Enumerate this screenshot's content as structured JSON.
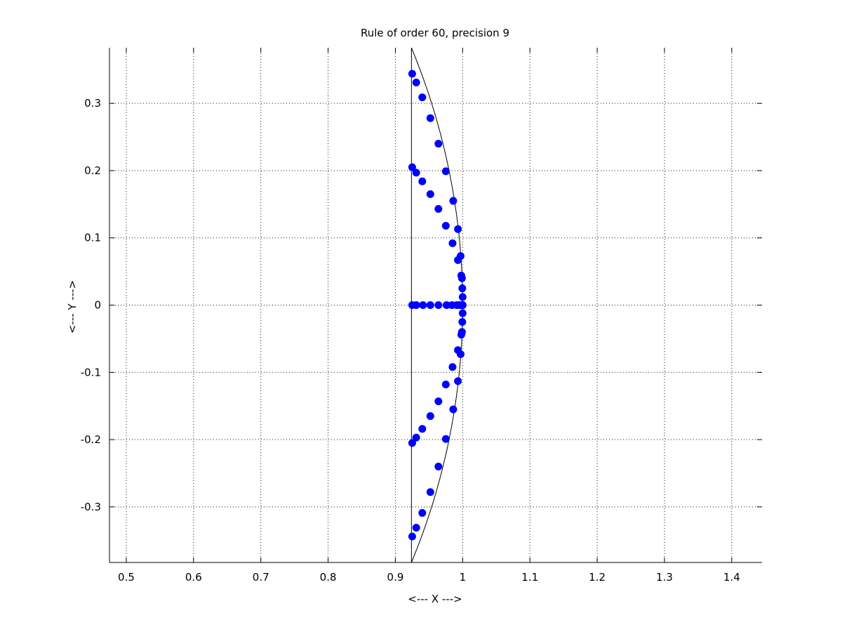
{
  "chart_data": {
    "type": "scatter",
    "title": "Rule of order 60, precision 9",
    "xlabel": "<--- X --->",
    "ylabel": "<--- Y --->",
    "xlim": [
      0.475,
      1.445
    ],
    "ylim": [
      -0.382683,
      0.382683
    ],
    "xticks": [
      0.5,
      0.6,
      0.7,
      0.8,
      0.9,
      1,
      1.1,
      1.2,
      1.3,
      1.4
    ],
    "xtick_labels": [
      "0.5",
      "0.6",
      "0.7",
      "0.8",
      "0.9",
      "1",
      "1.1",
      "1.2",
      "1.3",
      "1.4"
    ],
    "yticks": [
      -0.3,
      -0.2,
      -0.1,
      0,
      0.1,
      0.2,
      0.3
    ],
    "ytick_labels": [
      "-0.3",
      "-0.2",
      "-0.1",
      "0",
      "0.1",
      "0.2",
      "0.3"
    ],
    "grid": true,
    "grid_style": "dotted",
    "marker_color": "#0000ff",
    "outline_color": "#000000",
    "region": {
      "shape": "circular segment",
      "chord_x": 0.92388,
      "radius": 1,
      "y_extent": [
        -0.382683,
        0.382683
      ]
    },
    "points": [
      {
        "x": 0.925,
        "y": 0.0
      },
      {
        "x": 0.931,
        "y": 0.0
      },
      {
        "x": 0.941,
        "y": 0.0
      },
      {
        "x": 0.952,
        "y": 0.0
      },
      {
        "x": 0.964,
        "y": 0.0
      },
      {
        "x": 0.976,
        "y": 0.0
      },
      {
        "x": 0.984,
        "y": 0.0
      },
      {
        "x": 0.991,
        "y": 0.0
      },
      {
        "x": 0.995,
        "y": 0.0
      },
      {
        "x": 0.998,
        "y": 0.0
      },
      {
        "x": 1.0,
        "y": 0.0
      },
      {
        "x": 1.0,
        "y": 0.0
      },
      {
        "x": 1.0,
        "y": 0.012
      },
      {
        "x": 0.9995,
        "y": 0.025
      },
      {
        "x": 0.999,
        "y": 0.04
      },
      {
        "x": 0.998,
        "y": 0.044
      },
      {
        "x": 0.997,
        "y": 0.073
      },
      {
        "x": 0.993,
        "y": 0.067
      },
      {
        "x": 0.993,
        "y": 0.113
      },
      {
        "x": 0.985,
        "y": 0.092
      },
      {
        "x": 0.986,
        "y": 0.155
      },
      {
        "x": 0.975,
        "y": 0.118
      },
      {
        "x": 0.975,
        "y": 0.199
      },
      {
        "x": 0.964,
        "y": 0.143
      },
      {
        "x": 0.964,
        "y": 0.24
      },
      {
        "x": 0.952,
        "y": 0.165
      },
      {
        "x": 0.952,
        "y": 0.278
      },
      {
        "x": 0.94,
        "y": 0.184
      },
      {
        "x": 0.94,
        "y": 0.309
      },
      {
        "x": 0.931,
        "y": 0.197
      },
      {
        "x": 0.931,
        "y": 0.331
      },
      {
        "x": 0.925,
        "y": 0.205
      },
      {
        "x": 0.925,
        "y": 0.344
      },
      {
        "x": 1.0,
        "y": -0.012
      },
      {
        "x": 0.9995,
        "y": -0.025
      },
      {
        "x": 0.999,
        "y": -0.04
      },
      {
        "x": 0.998,
        "y": -0.044
      },
      {
        "x": 0.997,
        "y": -0.073
      },
      {
        "x": 0.993,
        "y": -0.067
      },
      {
        "x": 0.993,
        "y": -0.113
      },
      {
        "x": 0.985,
        "y": -0.092
      },
      {
        "x": 0.986,
        "y": -0.155
      },
      {
        "x": 0.975,
        "y": -0.118
      },
      {
        "x": 0.975,
        "y": -0.199
      },
      {
        "x": 0.964,
        "y": -0.143
      },
      {
        "x": 0.964,
        "y": -0.24
      },
      {
        "x": 0.952,
        "y": -0.165
      },
      {
        "x": 0.952,
        "y": -0.278
      },
      {
        "x": 0.94,
        "y": -0.184
      },
      {
        "x": 0.94,
        "y": -0.309
      },
      {
        "x": 0.931,
        "y": -0.197
      },
      {
        "x": 0.931,
        "y": -0.331
      },
      {
        "x": 0.925,
        "y": -0.205
      },
      {
        "x": 0.925,
        "y": -0.344
      }
    ]
  }
}
